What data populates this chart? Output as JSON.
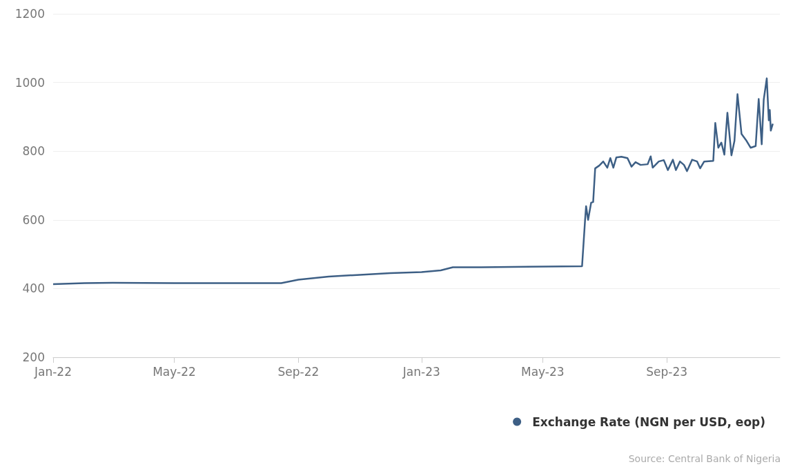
{
  "chart_data": {
    "type": "line",
    "x": [
      "2022-01-01",
      "2022-02-01",
      "2022-03-01",
      "2022-05-01",
      "2022-08-15",
      "2022-09-01",
      "2022-10-01",
      "2022-11-01",
      "2022-12-01",
      "2023-01-01",
      "2023-01-20",
      "2023-02-01",
      "2023-03-01",
      "2023-06-09",
      "2023-06-12",
      "2023-06-13",
      "2023-06-15",
      "2023-06-18",
      "2023-06-20",
      "2023-06-22",
      "2023-06-26",
      "2023-06-30",
      "2023-07-04",
      "2023-07-07",
      "2023-07-10",
      "2023-07-13",
      "2023-07-18",
      "2023-07-24",
      "2023-07-28",
      "2023-08-01",
      "2023-08-06",
      "2023-08-13",
      "2023-08-16",
      "2023-08-18",
      "2023-08-24",
      "2023-08-29",
      "2023-09-02",
      "2023-09-07",
      "2023-09-10",
      "2023-09-14",
      "2023-09-18",
      "2023-09-21",
      "2023-09-26",
      "2023-10-01",
      "2023-10-04",
      "2023-10-08",
      "2023-10-17",
      "2023-10-19",
      "2023-10-22",
      "2023-10-25",
      "2023-10-28",
      "2023-10-31",
      "2023-11-04",
      "2023-11-07",
      "2023-11-10",
      "2023-11-14",
      "2023-11-19",
      "2023-11-23",
      "2023-11-28",
      "2023-12-01",
      "2023-12-04",
      "2023-12-06",
      "2023-12-09",
      "2023-12-11",
      "2023-12-12",
      "2023-12-13",
      "2023-12-15"
    ],
    "series": [
      {
        "name": "Exchange Rate (NGN per USD, eop)",
        "color": "#3d5f85",
        "values": [
          413,
          416,
          417,
          416,
          416,
          426,
          435,
          440,
          445,
          448,
          453,
          462,
          462,
          465,
          600,
          640,
          600,
          650,
          652,
          750,
          758,
          770,
          752,
          780,
          752,
          782,
          784,
          780,
          755,
          768,
          760,
          762,
          785,
          752,
          770,
          774,
          745,
          775,
          745,
          770,
          760,
          742,
          775,
          770,
          750,
          770,
          772,
          882,
          810,
          825,
          790,
          912,
          788,
          830,
          966,
          850,
          830,
          810,
          815,
          952,
          820,
          950,
          1012,
          890,
          920,
          860,
          880
        ]
      }
    ],
    "xlim": [
      "2022-01-01",
      "2023-12-22"
    ],
    "xticks": [
      {
        "value": "2022-01-01",
        "label": "Jan-22"
      },
      {
        "value": "2022-05-01",
        "label": "May-22"
      },
      {
        "value": "2022-09-01",
        "label": "Sep-22"
      },
      {
        "value": "2023-01-01",
        "label": "Jan-23"
      },
      {
        "value": "2023-05-01",
        "label": "May-23"
      },
      {
        "value": "2023-09-01",
        "label": "Sep-23"
      }
    ],
    "ylim": [
      200,
      1200
    ],
    "yticks": [
      200,
      400,
      600,
      800,
      1000,
      1200
    ],
    "grid": "y",
    "legend": "bottom right",
    "annotations": [
      "Source: Central Bank of Nigeria"
    ]
  }
}
